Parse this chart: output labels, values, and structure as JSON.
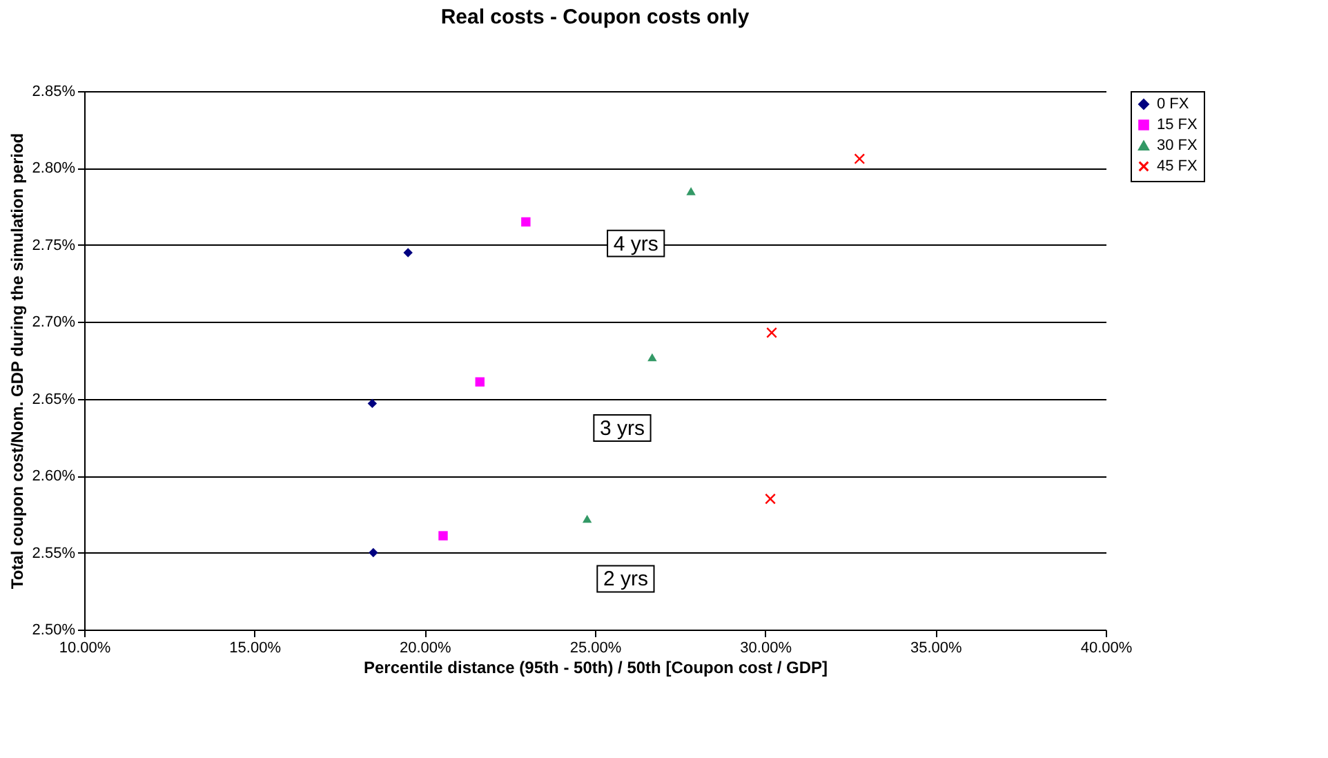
{
  "chart_data": {
    "type": "scatter",
    "title": "Real costs - Coupon costs only",
    "xlabel": "Percentile distance (95th - 50th) / 50th  [Coupon cost / GDP]",
    "ylabel": "Total coupon cost/Nom. GDP during the simulation period",
    "series": [
      {
        "name": "0 FX",
        "color": "#000080",
        "marker": "diamond",
        "x": [
          19.51,
          18.46,
          18.49
        ],
        "values": [
          2.745,
          2.647,
          2.55
        ]
      },
      {
        "name": "15 FX",
        "color": "#ff00ff",
        "marker": "square",
        "x": [
          22.97,
          21.62,
          20.54
        ],
        "values": [
          2.765,
          2.661,
          2.561
        ]
      },
      {
        "name": "30 FX",
        "color": "#339966",
        "marker": "triangle",
        "x": [
          27.82,
          26.68,
          24.77
        ],
        "values": [
          2.785,
          2.677,
          2.572
        ]
      },
      {
        "name": "45 FX",
        "color": "#ff0000",
        "marker": "cross",
        "x": [
          32.77,
          30.19,
          30.15
        ],
        "values": [
          2.806,
          2.693,
          2.585
        ]
      }
    ],
    "annotations": [
      {
        "text": "4 yrs",
        "x": 26.2,
        "y": 2.751
      },
      {
        "text": "3 yrs",
        "x": 25.8,
        "y": 2.631
      },
      {
        "text": "2 yrs",
        "x": 25.9,
        "y": 2.533
      }
    ],
    "xlim": [
      10,
      40
    ],
    "xticks": [
      {
        "value": 10,
        "label": "10.00%"
      },
      {
        "value": 15,
        "label": "15.00%"
      },
      {
        "value": 20,
        "label": "20.00%"
      },
      {
        "value": 25,
        "label": "25.00%"
      },
      {
        "value": 30,
        "label": "30.00%"
      },
      {
        "value": 35,
        "label": "35.00%"
      },
      {
        "value": 40,
        "label": "40.00%"
      }
    ],
    "ylim": [
      2.5,
      2.85
    ],
    "yticks": [
      {
        "value": 2.5,
        "label": "2.50%"
      },
      {
        "value": 2.55,
        "label": "2.55%"
      },
      {
        "value": 2.6,
        "label": "2.60%"
      },
      {
        "value": 2.65,
        "label": "2.65%"
      },
      {
        "value": 2.7,
        "label": "2.70%"
      },
      {
        "value": 2.75,
        "label": "2.75%"
      },
      {
        "value": 2.8,
        "label": "2.80%"
      },
      {
        "value": 2.85,
        "label": "2.85%"
      }
    ],
    "grid": "y",
    "legend": "right"
  }
}
